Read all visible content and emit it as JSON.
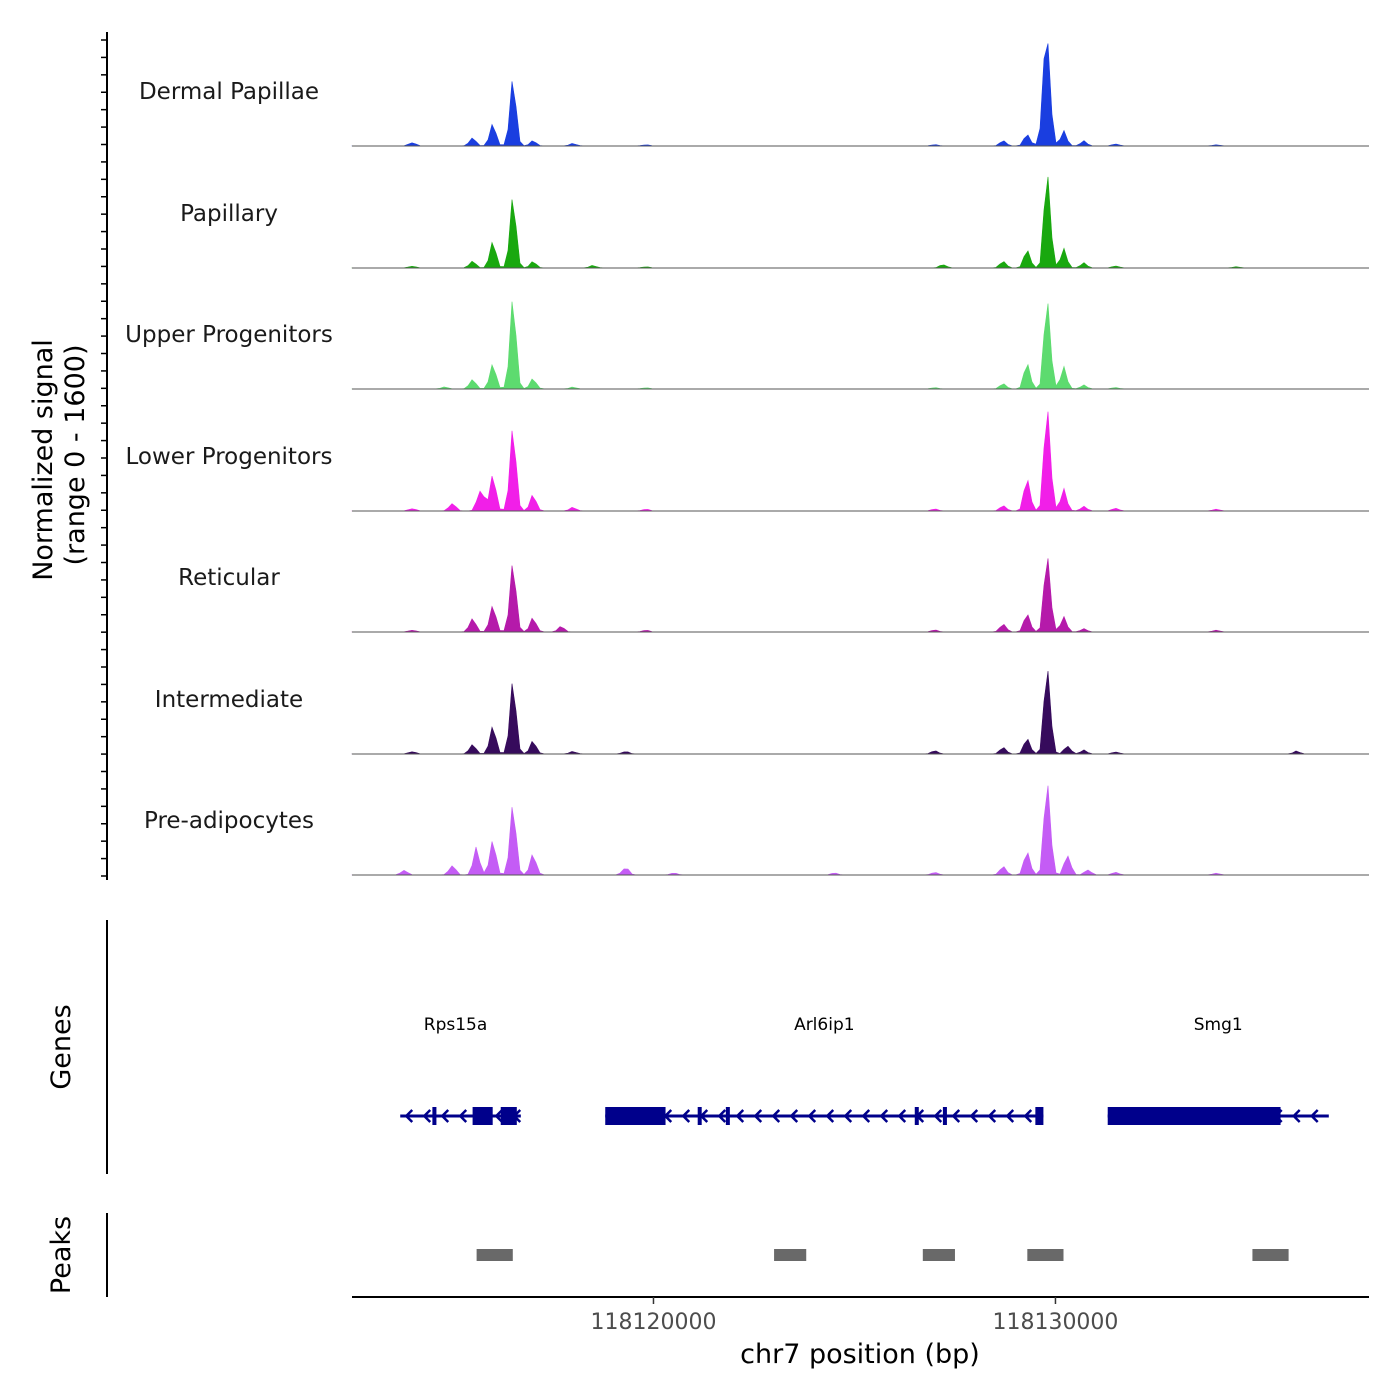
{
  "chart_data": {
    "type": "area",
    "chromosome": "chr7",
    "xlabel": "chr7 position (bp)",
    "xlim": [
      118112500,
      118137800
    ],
    "xticks": [
      118120000,
      118130000
    ],
    "xtick_labels": [
      "118120000",
      "118130000"
    ],
    "signal_ylabel_line1": "Normalized signal",
    "signal_ylabel_line2": "(range 0 - 1600)",
    "signal_ylim": [
      0,
      1600
    ],
    "genes_label": "Genes",
    "peaks_label": "Peaks",
    "series": [
      {
        "name": "Dermal Papillae",
        "color": "#1a3ee0",
        "peaks": [
          [
            118114000,
            60
          ],
          [
            118115500,
            120
          ],
          [
            118116000,
            320
          ],
          [
            118116500,
            990
          ],
          [
            118117000,
            80
          ],
          [
            118118000,
            40
          ],
          [
            118119800,
            20
          ],
          [
            118127000,
            20
          ],
          [
            118128700,
            80
          ],
          [
            118129300,
            180
          ],
          [
            118129700,
            380
          ],
          [
            118129800,
            1500
          ],
          [
            118130200,
            220
          ],
          [
            118130700,
            80
          ],
          [
            118131500,
            30
          ],
          [
            118134000,
            20
          ]
        ]
      },
      {
        "name": "Papillary",
        "color": "#19a80f",
        "peaks": [
          [
            118114000,
            30
          ],
          [
            118115500,
            100
          ],
          [
            118116000,
            380
          ],
          [
            118116500,
            1050
          ],
          [
            118117000,
            100
          ],
          [
            118118500,
            40
          ],
          [
            118119800,
            20
          ],
          [
            118127200,
            60
          ],
          [
            118128700,
            100
          ],
          [
            118129300,
            280
          ],
          [
            118129800,
            1450
          ],
          [
            118130200,
            280
          ],
          [
            118130700,
            80
          ],
          [
            118131500,
            30
          ],
          [
            118134500,
            20
          ]
        ]
      },
      {
        "name": "Upper Progenitors",
        "color": "#5ddb6f",
        "peaks": [
          [
            118114800,
            30
          ],
          [
            118115500,
            140
          ],
          [
            118116000,
            360
          ],
          [
            118116500,
            1340
          ],
          [
            118117000,
            160
          ],
          [
            118118000,
            30
          ],
          [
            118119800,
            20
          ],
          [
            118127000,
            20
          ],
          [
            118128700,
            80
          ],
          [
            118129300,
            400
          ],
          [
            118129800,
            1360
          ],
          [
            118130200,
            320
          ],
          [
            118130700,
            60
          ],
          [
            118131500,
            20
          ]
        ]
      },
      {
        "name": "Lower Progenitors",
        "color": "#f11fe8",
        "peaks": [
          [
            118114000,
            40
          ],
          [
            118115000,
            120
          ],
          [
            118115700,
            380
          ],
          [
            118116000,
            520
          ],
          [
            118116500,
            1230
          ],
          [
            118117000,
            250
          ],
          [
            118118000,
            60
          ],
          [
            118119800,
            30
          ],
          [
            118127000,
            30
          ],
          [
            118128700,
            80
          ],
          [
            118129300,
            500
          ],
          [
            118129800,
            1580
          ],
          [
            118130200,
            320
          ],
          [
            118130700,
            70
          ],
          [
            118131500,
            40
          ],
          [
            118134000,
            30
          ]
        ]
      },
      {
        "name": "Reticular",
        "color": "#b51aaa",
        "peaks": [
          [
            118114000,
            30
          ],
          [
            118115500,
            200
          ],
          [
            118116000,
            380
          ],
          [
            118116500,
            1020
          ],
          [
            118117000,
            220
          ],
          [
            118117700,
            80
          ],
          [
            118119800,
            30
          ],
          [
            118127000,
            30
          ],
          [
            118128700,
            120
          ],
          [
            118129300,
            280
          ],
          [
            118129800,
            1170
          ],
          [
            118130200,
            220
          ],
          [
            118130700,
            50
          ],
          [
            118134000,
            30
          ]
        ]
      },
      {
        "name": "Intermediate",
        "color": "#360b5c",
        "peaks": [
          [
            118114000,
            40
          ],
          [
            118115500,
            140
          ],
          [
            118116000,
            400
          ],
          [
            118116500,
            1080
          ],
          [
            118117000,
            200
          ],
          [
            118118000,
            40
          ],
          [
            118119300,
            40
          ],
          [
            118127000,
            50
          ],
          [
            118128700,
            100
          ],
          [
            118129300,
            240
          ],
          [
            118129800,
            1320
          ],
          [
            118130300,
            120
          ],
          [
            118130700,
            60
          ],
          [
            118131500,
            30
          ],
          [
            118136000,
            40
          ]
        ]
      },
      {
        "name": "Pre-adipocytes",
        "color": "#c45cf5",
        "peaks": [
          [
            118113800,
            70
          ],
          [
            118115000,
            150
          ],
          [
            118115600,
            420
          ],
          [
            118116000,
            500
          ],
          [
            118116500,
            1040
          ],
          [
            118117000,
            320
          ],
          [
            118119300,
            120
          ],
          [
            118120500,
            30
          ],
          [
            118124500,
            30
          ],
          [
            118127000,
            40
          ],
          [
            118128700,
            130
          ],
          [
            118129300,
            360
          ],
          [
            118129800,
            1420
          ],
          [
            118130300,
            300
          ],
          [
            118130800,
            80
          ],
          [
            118131500,
            40
          ],
          [
            118134000,
            30
          ]
        ]
      }
    ],
    "genes": [
      {
        "name": "Rps15a",
        "start": 118113700,
        "end": 118116700,
        "strand": "-",
        "exons": [
          [
            118114500,
            118114600
          ],
          [
            118115500,
            118116000
          ],
          [
            118116200,
            118116600
          ]
        ]
      },
      {
        "name": "Arl6ip1",
        "start": 118118800,
        "end": 118129700,
        "strand": "-",
        "exons": [
          [
            118118800,
            118120300
          ],
          [
            118121100,
            118121150
          ],
          [
            118121800,
            118121900
          ],
          [
            118126500,
            118126600
          ],
          [
            118127200,
            118127300
          ],
          [
            118129500,
            118129700
          ]
        ]
      },
      {
        "name": "Smg1",
        "start": 118131300,
        "end": 118136800,
        "strand": "-",
        "exons": [
          [
            118131300,
            118135600
          ]
        ]
      }
    ],
    "peak_regions": [
      [
        118115600,
        118116500
      ],
      [
        118123000,
        118123800
      ],
      [
        118126700,
        118127500
      ],
      [
        118129300,
        118130200
      ],
      [
        118134900,
        118135800
      ]
    ]
  }
}
